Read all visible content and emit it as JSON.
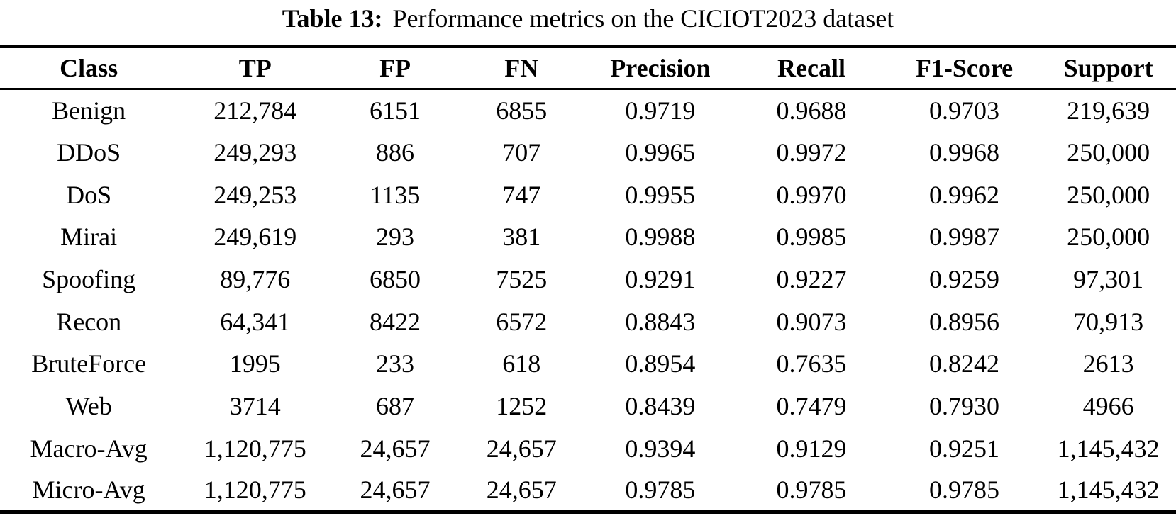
{
  "caption": {
    "label": "Table 13:",
    "text": "Performance metrics on the CICIOT2023 dataset"
  },
  "table": {
    "columns": [
      "Class",
      "TP",
      "FP",
      "FN",
      "Precision",
      "Recall",
      "F1-Score",
      "Support"
    ],
    "rows": [
      [
        "Benign",
        "212,784",
        "6151",
        "6855",
        "0.9719",
        "0.9688",
        "0.9703",
        "219,639"
      ],
      [
        "DDoS",
        "249,293",
        "886",
        "707",
        "0.9965",
        "0.9972",
        "0.9968",
        "250,000"
      ],
      [
        "DoS",
        "249,253",
        "1135",
        "747",
        "0.9955",
        "0.9970",
        "0.9962",
        "250,000"
      ],
      [
        "Mirai",
        "249,619",
        "293",
        "381",
        "0.9988",
        "0.9985",
        "0.9987",
        "250,000"
      ],
      [
        "Spoofing",
        "89,776",
        "6850",
        "7525",
        "0.9291",
        "0.9227",
        "0.9259",
        "97,301"
      ],
      [
        "Recon",
        "64,341",
        "8422",
        "6572",
        "0.8843",
        "0.9073",
        "0.8956",
        "70,913"
      ],
      [
        "BruteForce",
        "1995",
        "233",
        "618",
        "0.8954",
        "0.7635",
        "0.8242",
        "2613"
      ],
      [
        "Web",
        "3714",
        "687",
        "1252",
        "0.8439",
        "0.7479",
        "0.7930",
        "4966"
      ],
      [
        "Macro-Avg",
        "1,120,775",
        "24,657",
        "24,657",
        "0.9394",
        "0.9129",
        "0.9251",
        "1,145,432"
      ],
      [
        "Micro-Avg",
        "1,120,775",
        "24,657",
        "24,657",
        "0.9785",
        "0.9785",
        "0.9785",
        "1,145,432"
      ]
    ]
  },
  "colors": {
    "text": "#000000",
    "background": "#ffffff",
    "rule": "#000000"
  }
}
